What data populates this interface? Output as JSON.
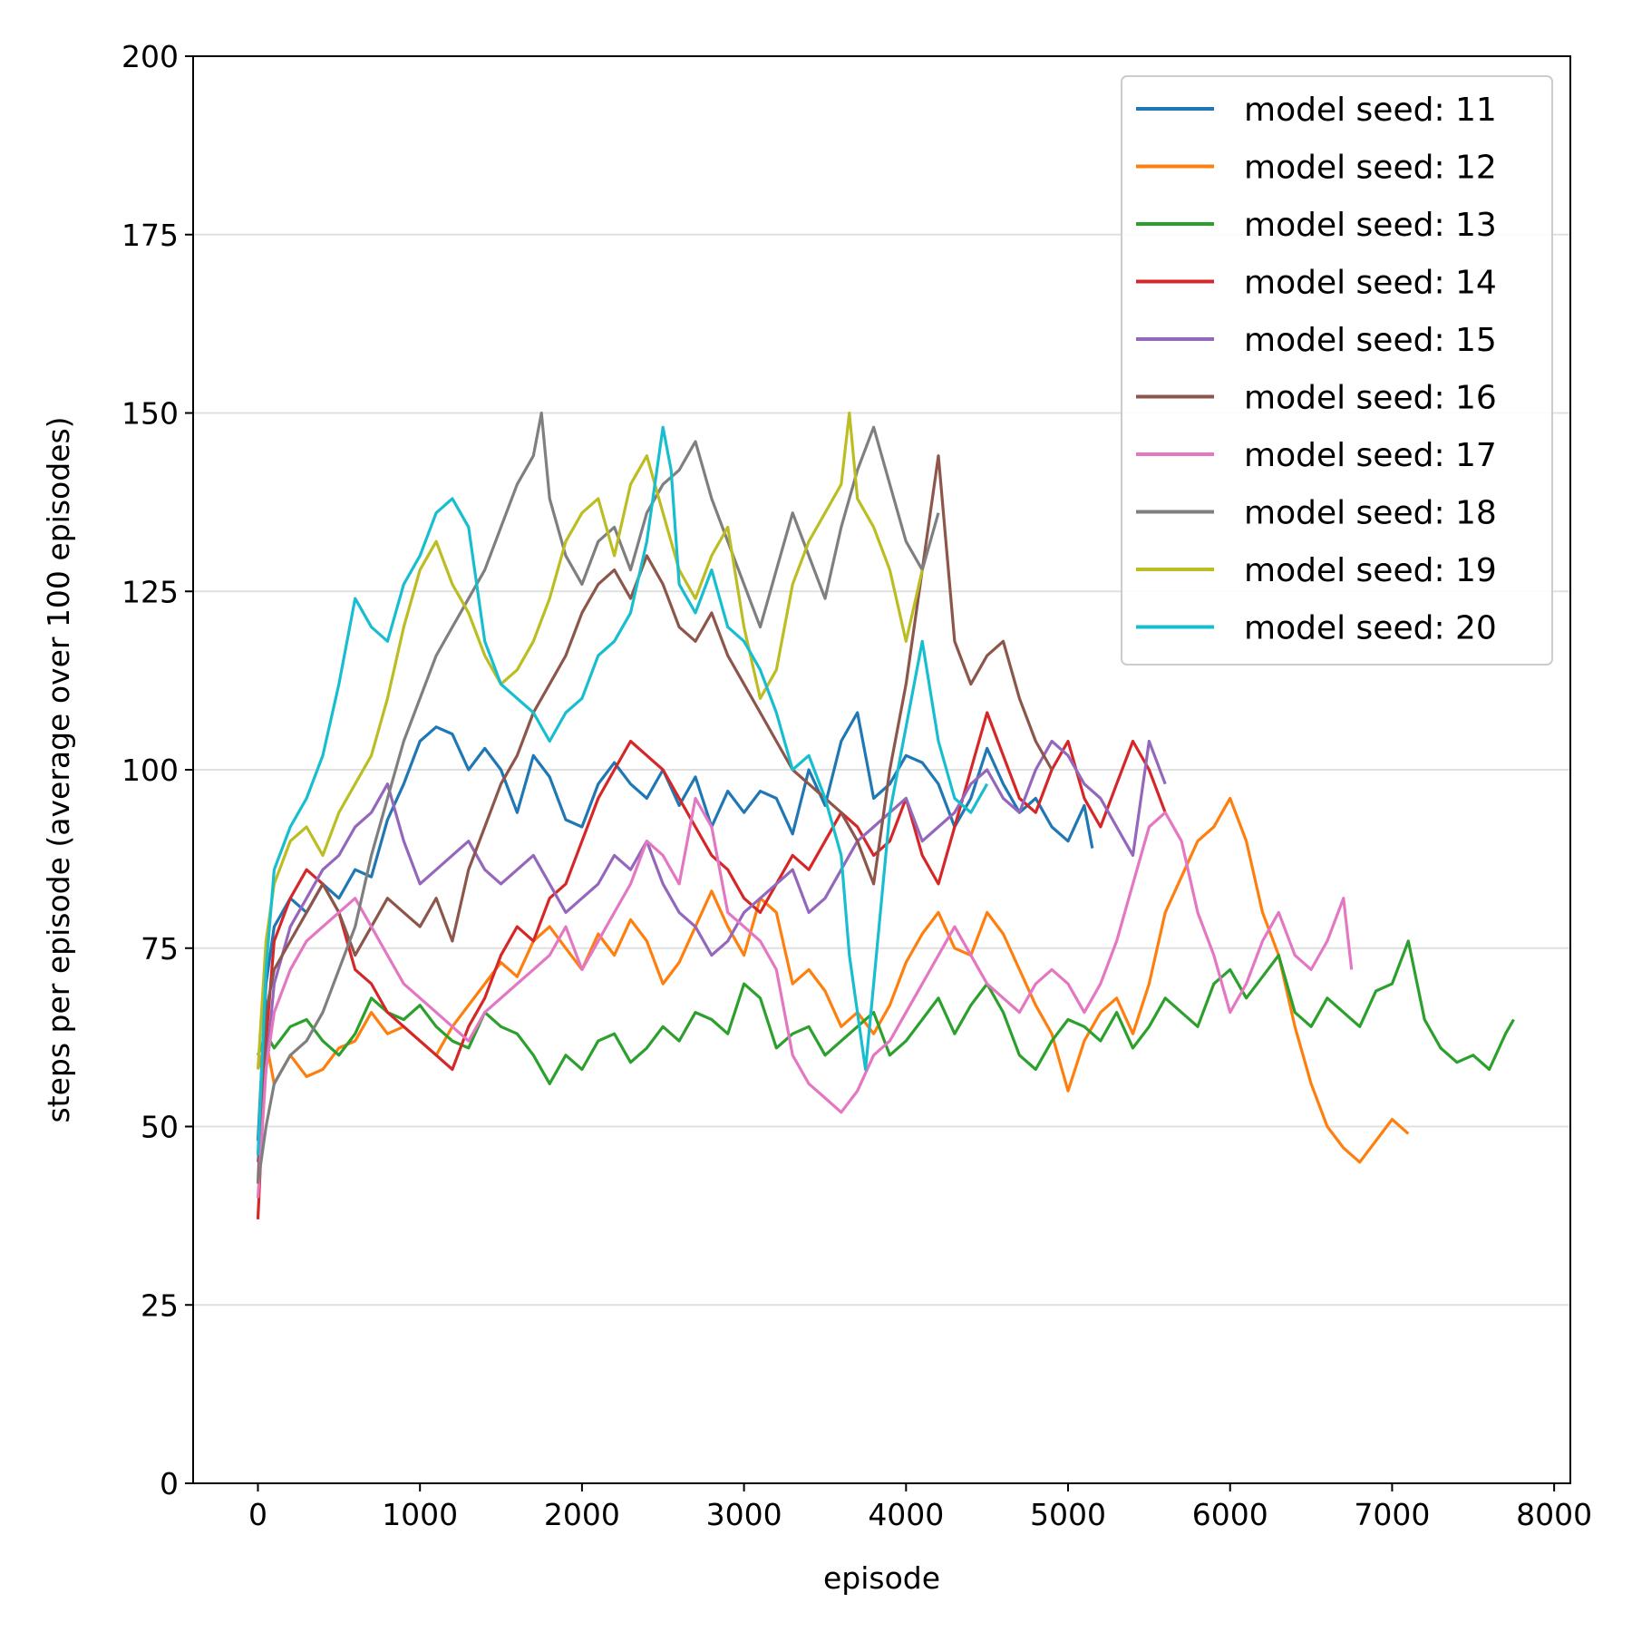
{
  "chart_data": {
    "type": "line",
    "title": "",
    "xlabel": "episode",
    "ylabel": "steps per episode (average over 100 episodes)",
    "xlim": [
      -400,
      8100
    ],
    "ylim": [
      0,
      200
    ],
    "xticks": [
      0,
      1000,
      2000,
      3000,
      4000,
      5000,
      6000,
      7000,
      8000
    ],
    "yticks": [
      0,
      25,
      50,
      75,
      100,
      125,
      150,
      175,
      200
    ],
    "grid": "horizontal",
    "legend_position": "top-right",
    "series": [
      {
        "name": "model seed: 11",
        "color": "#1f77b4",
        "x": [
          0,
          50,
          100,
          200,
          300,
          400,
          500,
          600,
          700,
          800,
          900,
          1000,
          1100,
          1200,
          1300,
          1400,
          1500,
          1600,
          1700,
          1800,
          1900,
          2000,
          2100,
          2200,
          2300,
          2400,
          2500,
          2600,
          2700,
          2800,
          2900,
          3000,
          3100,
          3200,
          3300,
          3400,
          3500,
          3600,
          3700,
          3800,
          3900,
          4000,
          4100,
          4200,
          4300,
          4400,
          4500,
          4600,
          4700,
          4800,
          4900,
          5000,
          5100,
          5150
        ],
        "y": [
          48,
          70,
          78,
          82,
          80,
          84,
          82,
          86,
          85,
          93,
          98,
          104,
          106,
          105,
          100,
          103,
          100,
          94,
          102,
          99,
          93,
          92,
          98,
          101,
          98,
          96,
          100,
          95,
          99,
          92,
          97,
          94,
          97,
          96,
          91,
          100,
          95,
          104,
          108,
          96,
          98,
          102,
          101,
          98,
          92,
          96,
          103,
          98,
          94,
          96,
          92,
          90,
          95,
          89
        ]
      },
      {
        "name": "model seed: 12",
        "color": "#ff7f0e",
        "x": [
          0,
          50,
          100,
          200,
          300,
          400,
          500,
          600,
          700,
          800,
          900,
          1000,
          1100,
          1200,
          1300,
          1400,
          1500,
          1600,
          1700,
          1800,
          1900,
          2000,
          2100,
          2200,
          2300,
          2400,
          2500,
          2600,
          2700,
          2800,
          2900,
          3000,
          3100,
          3200,
          3300,
          3400,
          3500,
          3600,
          3700,
          3800,
          3900,
          4000,
          4100,
          4200,
          4300,
          4400,
          4500,
          4600,
          4700,
          4800,
          4900,
          5000,
          5100,
          5200,
          5300,
          5400,
          5500,
          5600,
          5700,
          5800,
          5900,
          6000,
          6100,
          6200,
          6300,
          6400,
          6500,
          6600,
          6700,
          6800,
          6900,
          7000,
          7100
        ],
        "y": [
          58,
          62,
          56,
          60,
          57,
          58,
          61,
          62,
          66,
          63,
          64,
          62,
          60,
          64,
          67,
          70,
          73,
          71,
          76,
          78,
          75,
          72,
          77,
          74,
          79,
          76,
          70,
          73,
          78,
          83,
          78,
          74,
          82,
          80,
          70,
          72,
          69,
          64,
          66,
          63,
          67,
          73,
          77,
          80,
          75,
          74,
          80,
          77,
          72,
          67,
          63,
          55,
          62,
          66,
          68,
          63,
          70,
          80,
          85,
          90,
          92,
          96,
          90,
          80,
          74,
          64,
          56,
          50,
          47,
          45,
          48,
          51,
          49
        ]
      },
      {
        "name": "model seed: 13",
        "color": "#2ca02c",
        "x": [
          0,
          50,
          100,
          200,
          300,
          400,
          500,
          600,
          700,
          800,
          900,
          1000,
          1100,
          1200,
          1300,
          1400,
          1500,
          1600,
          1700,
          1800,
          1900,
          2000,
          2100,
          2200,
          2300,
          2400,
          2500,
          2600,
          2700,
          2800,
          2900,
          3000,
          3100,
          3200,
          3300,
          3400,
          3500,
          3600,
          3700,
          3800,
          3900,
          4000,
          4100,
          4200,
          4300,
          4400,
          4500,
          4600,
          4700,
          4800,
          4900,
          5000,
          5100,
          5200,
          5300,
          5400,
          5500,
          5600,
          5700,
          5800,
          5900,
          6000,
          6100,
          6200,
          6300,
          6400,
          6500,
          6600,
          6700,
          6800,
          6900,
          7000,
          7100,
          7200,
          7300,
          7400,
          7500,
          7600,
          7700,
          7750
        ],
        "y": [
          60,
          63,
          61,
          64,
          65,
          62,
          60,
          63,
          68,
          66,
          65,
          67,
          64,
          62,
          61,
          66,
          64,
          63,
          60,
          56,
          60,
          58,
          62,
          63,
          59,
          61,
          64,
          62,
          66,
          65,
          63,
          70,
          68,
          61,
          63,
          64,
          60,
          62,
          64,
          66,
          60,
          62,
          65,
          68,
          63,
          67,
          70,
          66,
          60,
          58,
          62,
          65,
          64,
          62,
          66,
          61,
          64,
          68,
          66,
          64,
          70,
          72,
          68,
          71,
          74,
          66,
          64,
          68,
          66,
          64,
          69,
          70,
          76,
          65,
          61,
          59,
          60,
          58,
          63,
          65
        ]
      },
      {
        "name": "model seed: 14",
        "color": "#d62728",
        "x": [
          0,
          50,
          100,
          200,
          300,
          400,
          500,
          600,
          700,
          800,
          900,
          1000,
          1100,
          1200,
          1300,
          1400,
          1500,
          1600,
          1700,
          1800,
          1900,
          2000,
          2100,
          2200,
          2300,
          2400,
          2500,
          2600,
          2700,
          2800,
          2900,
          3000,
          3100,
          3200,
          3300,
          3400,
          3500,
          3600,
          3700,
          3800,
          3900,
          4000,
          4100,
          4200,
          4300,
          4400,
          4500,
          4600,
          4700,
          4800,
          4900,
          5000,
          5100,
          5200,
          5300,
          5400,
          5500,
          5600
        ],
        "y": [
          37,
          62,
          76,
          82,
          86,
          84,
          80,
          72,
          70,
          66,
          64,
          62,
          60,
          58,
          64,
          68,
          74,
          78,
          76,
          82,
          84,
          90,
          96,
          100,
          104,
          102,
          100,
          96,
          92,
          88,
          86,
          82,
          80,
          84,
          88,
          86,
          90,
          94,
          92,
          88,
          90,
          96,
          88,
          84,
          92,
          100,
          108,
          102,
          96,
          94,
          100,
          104,
          96,
          92,
          98,
          104,
          100,
          94
        ]
      },
      {
        "name": "model seed: 15",
        "color": "#9467bd",
        "x": [
          0,
          50,
          100,
          200,
          300,
          400,
          500,
          600,
          700,
          800,
          900,
          1000,
          1100,
          1200,
          1300,
          1400,
          1500,
          1600,
          1700,
          1800,
          1900,
          2000,
          2100,
          2200,
          2300,
          2400,
          2500,
          2600,
          2700,
          2800,
          2900,
          3000,
          3100,
          3200,
          3300,
          3400,
          3500,
          3600,
          3700,
          3800,
          3900,
          4000,
          4100,
          4200,
          4300,
          4400,
          4500,
          4600,
          4700,
          4800,
          4900,
          5000,
          5100,
          5200,
          5300,
          5400,
          5500,
          5600
        ],
        "y": [
          45,
          58,
          70,
          78,
          82,
          86,
          88,
          92,
          94,
          98,
          90,
          84,
          86,
          88,
          90,
          86,
          84,
          86,
          88,
          84,
          80,
          82,
          84,
          88,
          86,
          90,
          84,
          80,
          78,
          74,
          76,
          80,
          82,
          84,
          86,
          80,
          82,
          86,
          90,
          92,
          94,
          96,
          90,
          92,
          94,
          98,
          100,
          96,
          94,
          100,
          104,
          102,
          98,
          96,
          92,
          88,
          104,
          98
        ]
      },
      {
        "name": "model seed: 16",
        "color": "#8c564b",
        "x": [
          0,
          50,
          100,
          200,
          300,
          400,
          500,
          600,
          700,
          800,
          900,
          1000,
          1100,
          1200,
          1300,
          1400,
          1500,
          1600,
          1700,
          1800,
          1900,
          2000,
          2100,
          2200,
          2300,
          2400,
          2500,
          2600,
          2700,
          2800,
          2900,
          3000,
          3100,
          3200,
          3300,
          3400,
          3500,
          3600,
          3700,
          3800,
          3900,
          4000,
          4100,
          4200,
          4300,
          4400,
          4500,
          4600,
          4700,
          4800,
          4900
        ],
        "y": [
          42,
          66,
          72,
          76,
          80,
          84,
          80,
          74,
          78,
          82,
          80,
          78,
          82,
          76,
          86,
          92,
          98,
          102,
          108,
          112,
          116,
          122,
          126,
          128,
          124,
          130,
          126,
          120,
          118,
          122,
          116,
          112,
          108,
          104,
          100,
          98,
          96,
          94,
          90,
          84,
          100,
          112,
          128,
          144,
          118,
          112,
          116,
          118,
          110,
          104,
          100
        ]
      },
      {
        "name": "model seed: 17",
        "color": "#e377c2",
        "x": [
          0,
          50,
          100,
          200,
          300,
          400,
          500,
          600,
          700,
          800,
          900,
          1000,
          1100,
          1200,
          1300,
          1400,
          1500,
          1600,
          1700,
          1800,
          1900,
          2000,
          2100,
          2200,
          2300,
          2400,
          2500,
          2600,
          2700,
          2800,
          2900,
          3000,
          3100,
          3200,
          3300,
          3400,
          3500,
          3600,
          3700,
          3800,
          3900,
          4000,
          4100,
          4200,
          4300,
          4400,
          4500,
          4600,
          4700,
          4800,
          4900,
          5000,
          5100,
          5200,
          5300,
          5400,
          5500,
          5600,
          5700,
          5800,
          5900,
          6000,
          6100,
          6200,
          6300,
          6400,
          6500,
          6600,
          6700,
          6750
        ],
        "y": [
          40,
          58,
          66,
          72,
          76,
          78,
          80,
          82,
          78,
          74,
          70,
          68,
          66,
          64,
          62,
          66,
          68,
          70,
          72,
          74,
          78,
          72,
          76,
          80,
          84,
          90,
          88,
          84,
          96,
          92,
          80,
          78,
          76,
          72,
          60,
          56,
          54,
          52,
          55,
          60,
          62,
          66,
          70,
          74,
          78,
          74,
          70,
          68,
          66,
          70,
          72,
          70,
          66,
          70,
          76,
          84,
          92,
          94,
          90,
          80,
          74,
          66,
          70,
          76,
          80,
          74,
          72,
          76,
          82,
          72
        ]
      },
      {
        "name": "model seed: 18",
        "color": "#7f7f7f",
        "x": [
          0,
          50,
          100,
          200,
          300,
          400,
          500,
          600,
          700,
          800,
          900,
          1000,
          1100,
          1200,
          1300,
          1400,
          1500,
          1600,
          1700,
          1750,
          1800,
          1900,
          2000,
          2100,
          2200,
          2300,
          2400,
          2500,
          2600,
          2700,
          2800,
          2900,
          3000,
          3100,
          3200,
          3300,
          3400,
          3500,
          3600,
          3700,
          3800,
          3900,
          4000,
          4100,
          4200
        ],
        "y": [
          42,
          50,
          56,
          60,
          62,
          66,
          72,
          78,
          88,
          96,
          104,
          110,
          116,
          120,
          124,
          128,
          134,
          140,
          144,
          150,
          138,
          130,
          126,
          132,
          134,
          128,
          136,
          140,
          142,
          146,
          138,
          132,
          126,
          120,
          128,
          136,
          130,
          124,
          134,
          142,
          148,
          140,
          132,
          128,
          136
        ]
      },
      {
        "name": "model seed: 19",
        "color": "#bcbd22",
        "x": [
          0,
          50,
          100,
          200,
          300,
          400,
          500,
          600,
          700,
          800,
          900,
          1000,
          1100,
          1200,
          1300,
          1400,
          1500,
          1600,
          1700,
          1800,
          1900,
          2000,
          2100,
          2200,
          2300,
          2400,
          2500,
          2600,
          2700,
          2800,
          2900,
          3000,
          3100,
          3200,
          3300,
          3400,
          3500,
          3600,
          3650,
          3700,
          3800,
          3900,
          4000,
          4100
        ],
        "y": [
          58,
          76,
          84,
          90,
          92,
          88,
          94,
          98,
          102,
          110,
          120,
          128,
          132,
          126,
          122,
          116,
          112,
          114,
          118,
          124,
          132,
          136,
          138,
          130,
          140,
          144,
          136,
          128,
          124,
          130,
          134,
          120,
          110,
          114,
          126,
          132,
          136,
          140,
          150,
          138,
          134,
          128,
          118,
          128
        ]
      },
      {
        "name": "model seed: 20",
        "color": "#17becf",
        "x": [
          0,
          50,
          100,
          200,
          300,
          400,
          500,
          600,
          700,
          800,
          900,
          1000,
          1100,
          1200,
          1300,
          1400,
          1500,
          1600,
          1700,
          1800,
          1900,
          2000,
          2100,
          2200,
          2300,
          2400,
          2500,
          2550,
          2600,
          2700,
          2800,
          2900,
          3000,
          3100,
          3200,
          3300,
          3400,
          3500,
          3600,
          3650,
          3700,
          3750,
          3800,
          3900,
          4000,
          4100,
          4200,
          4300,
          4400,
          4500
        ],
        "y": [
          46,
          72,
          86,
          92,
          96,
          102,
          112,
          124,
          120,
          118,
          126,
          130,
          136,
          138,
          134,
          118,
          112,
          110,
          108,
          104,
          108,
          110,
          116,
          118,
          122,
          132,
          148,
          142,
          126,
          122,
          128,
          120,
          118,
          114,
          108,
          100,
          102,
          96,
          88,
          74,
          66,
          58,
          70,
          94,
          106,
          118,
          104,
          96,
          94,
          98
        ]
      }
    ]
  }
}
